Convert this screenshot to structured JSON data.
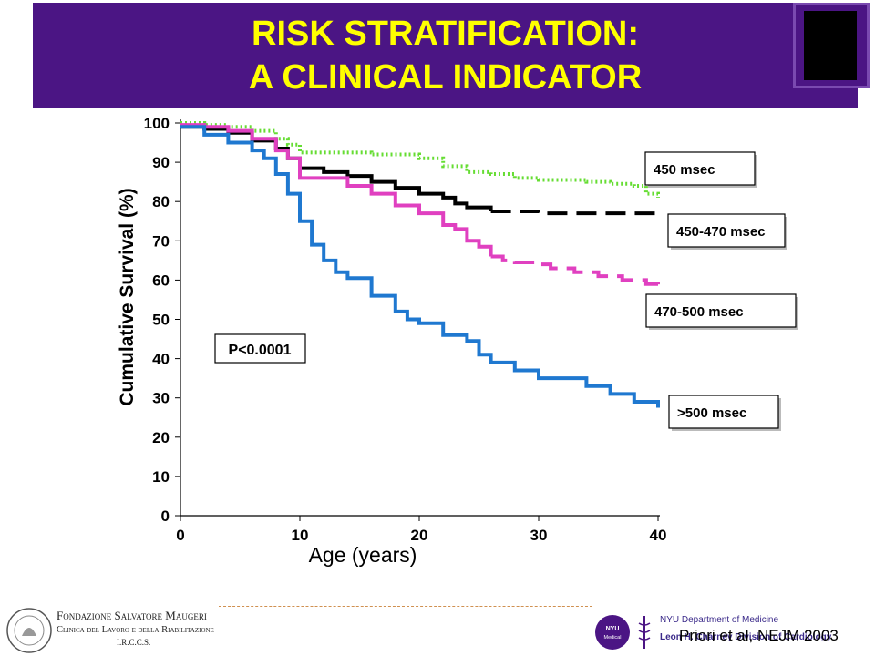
{
  "slide": {
    "title_line1": "RISK STRATIFICATION:",
    "title_line2": "A CLINICAL INDICATOR",
    "citation": "Priori et al, NEJM 2003",
    "colors": {
      "title_bg": "#4b1584",
      "title_text": "#ffff00"
    }
  },
  "footer": {
    "left_logo": {
      "line1": "Fondazione Salvatore Maugeri",
      "line2": "Clinica del Lavoro e della Riabilitazione",
      "line3": "I.R.C.C.S."
    },
    "right_logo": {
      "badge": "NYU Medical Center",
      "line1": "NYU Department of Medicine",
      "line2": "Leon H. Charney Division of Cardiology"
    }
  },
  "chart_data": {
    "type": "line",
    "title": "",
    "xlabel": "Age (years)",
    "ylabel": "Cumulative Survival (%)",
    "xlim": [
      0,
      40
    ],
    "ylim": [
      0,
      100
    ],
    "xticks": [
      0,
      10,
      20,
      30,
      40
    ],
    "yticks": [
      0,
      10,
      20,
      30,
      40,
      50,
      60,
      70,
      80,
      90,
      100
    ],
    "grid": false,
    "annotation": "P<0.0001",
    "series": [
      {
        "name": "450 msec",
        "color": "#66dd33",
        "style": "dotted",
        "x": [
          0,
          2,
          4,
          6,
          8,
          9,
          10,
          14,
          16,
          18,
          20,
          22,
          24,
          26,
          28,
          30,
          33,
          34,
          36,
          38,
          39,
          40
        ],
        "y": [
          100,
          99.5,
          99,
          98,
          96,
          94.5,
          92.5,
          92.5,
          92,
          92,
          91,
          89,
          87.5,
          87,
          86,
          85.5,
          85.5,
          85,
          84.5,
          84,
          82,
          81
        ]
      },
      {
        "name": "450-470 msec",
        "color": "#000000",
        "style": "solid-then-dashed",
        "x": [
          0,
          2,
          4,
          6,
          8,
          9,
          10,
          12,
          14,
          15,
          16,
          18,
          20,
          22,
          23,
          24,
          25,
          26,
          28,
          30,
          35,
          40
        ],
        "y": [
          99,
          98.5,
          97.5,
          95.5,
          93.5,
          91,
          88.5,
          87.5,
          86.5,
          86.5,
          85,
          83.5,
          82,
          81,
          79.5,
          78.5,
          78.5,
          77.5,
          77.5,
          77,
          77,
          77
        ]
      },
      {
        "name": "470-500 msec",
        "color": "#e040c0",
        "style": "solid-then-dashed",
        "x": [
          0,
          2,
          4,
          6,
          8,
          9,
          10,
          12,
          14,
          16,
          18,
          20,
          22,
          23,
          24,
          25,
          26,
          27,
          28,
          30,
          31,
          33,
          35,
          37,
          39,
          40
        ],
        "y": [
          99.5,
          99,
          98,
          96,
          93,
          91,
          86,
          86,
          84,
          82,
          79,
          77,
          74,
          73,
          70,
          68.5,
          66,
          65,
          64.5,
          64,
          63,
          62,
          61,
          60,
          59,
          58
        ]
      },
      {
        "name": ">500 msec",
        "color": "#1f78d0",
        "style": "solid",
        "x": [
          0,
          2,
          4,
          6,
          7,
          8,
          9,
          10,
          11,
          12,
          13,
          14,
          16,
          18,
          19,
          20,
          22,
          24,
          25,
          26,
          28,
          30,
          32,
          34,
          36,
          38,
          40
        ],
        "y": [
          99,
          97,
          95,
          93,
          91,
          87,
          82,
          75,
          69,
          65,
          62,
          60.5,
          56,
          52,
          50,
          49,
          46,
          44.5,
          41,
          39,
          37,
          35,
          35,
          33,
          31,
          29,
          27.5
        ]
      }
    ]
  }
}
